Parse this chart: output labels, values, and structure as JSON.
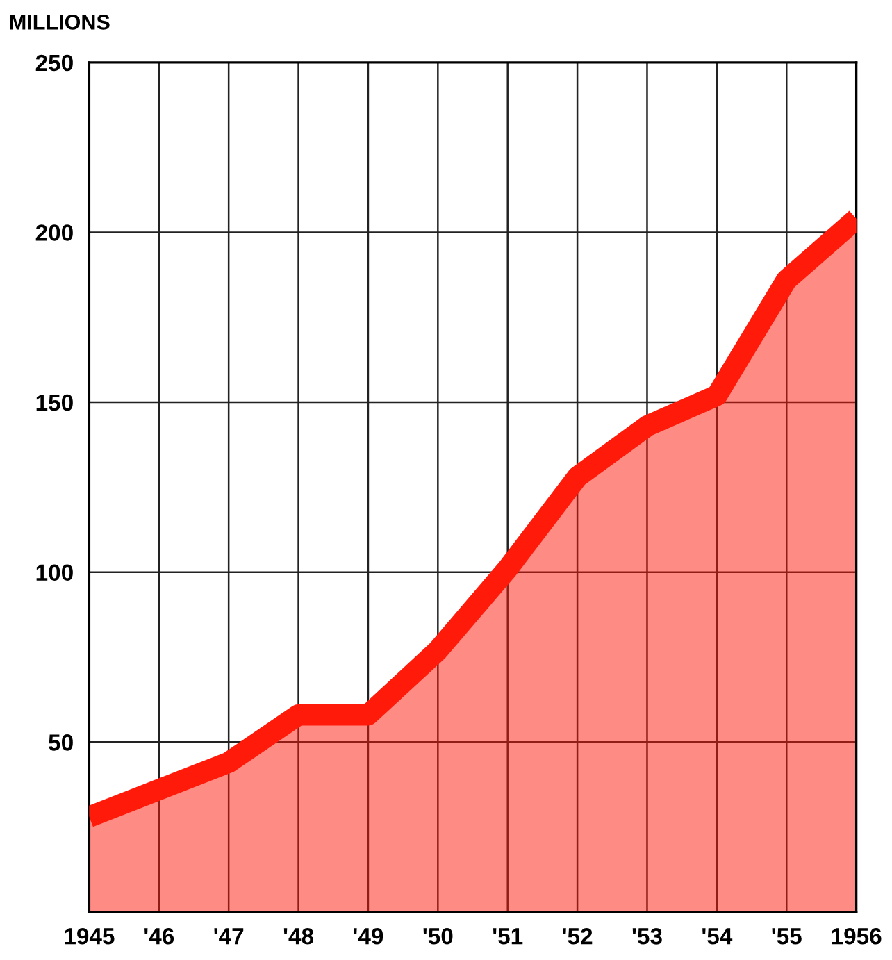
{
  "chart_data": {
    "type": "area",
    "ylabel": "MILLIONS",
    "x": [
      1945,
      1946,
      1947,
      1948,
      1949,
      1950,
      1951,
      1952,
      1953,
      1954,
      1955,
      1956
    ],
    "series": [
      {
        "color": "#ff1a0a",
        "values": [
          28,
          36,
          44,
          58,
          58,
          77,
          101,
          128,
          143,
          152,
          186,
          204
        ]
      }
    ],
    "xlim": [
      1945,
      1956
    ],
    "xticks": [
      {
        "value": 1945,
        "label": "1945"
      },
      {
        "value": 1946,
        "label": "'46"
      },
      {
        "value": 1947,
        "label": "'47"
      },
      {
        "value": 1948,
        "label": "'48"
      },
      {
        "value": 1949,
        "label": "'49"
      },
      {
        "value": 1950,
        "label": "'50"
      },
      {
        "value": 1951,
        "label": "'51"
      },
      {
        "value": 1952,
        "label": "'52"
      },
      {
        "value": 1953,
        "label": "'53"
      },
      {
        "value": 1954,
        "label": "'54"
      },
      {
        "value": 1955,
        "label": "'55"
      },
      {
        "value": 1956,
        "label": "1956"
      }
    ],
    "ylim": [
      0,
      250
    ],
    "yticks": [
      {
        "value": 0,
        "label": null
      },
      50,
      100,
      150,
      200,
      250
    ],
    "grid": true
  }
}
